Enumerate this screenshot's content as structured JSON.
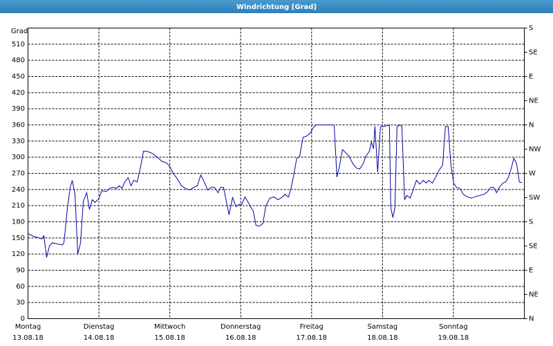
{
  "chart_data": {
    "type": "line",
    "title": "Windrichtung [Grad]",
    "ylabel": "Grad",
    "xlim": [
      0,
      7
    ],
    "ylim": [
      0,
      540
    ],
    "y2lim": [
      0,
      540
    ],
    "xticks": [
      {
        "value": 0,
        "label": "Montag"
      },
      {
        "value": 1,
        "label": "Dienstag"
      },
      {
        "value": 2,
        "label": "Mittwoch"
      },
      {
        "value": 3,
        "label": "Donnerstag"
      },
      {
        "value": 4,
        "label": "Freitag"
      },
      {
        "value": 5,
        "label": "Samstag"
      },
      {
        "value": 6,
        "label": "Sonntag"
      }
    ],
    "xtick_dates": [
      "13.08.18",
      "14.08.18",
      "15.08.18",
      "16.08.18",
      "17.08.18",
      "18.08.18",
      "19.08.18"
    ],
    "yticks": [
      0,
      30,
      60,
      90,
      120,
      150,
      180,
      210,
      240,
      270,
      300,
      330,
      360,
      390,
      420,
      450,
      480,
      510
    ],
    "y2ticks": [
      {
        "value": 0,
        "label": "N"
      },
      {
        "value": 45,
        "label": "NE"
      },
      {
        "value": 90,
        "label": "E"
      },
      {
        "value": 135,
        "label": "SE"
      },
      {
        "value": 180,
        "label": "S"
      },
      {
        "value": 225,
        "label": "SW"
      },
      {
        "value": 270,
        "label": "W"
      },
      {
        "value": 315,
        "label": "NW"
      },
      {
        "value": 360,
        "label": "N"
      },
      {
        "value": 405,
        "label": "NE"
      },
      {
        "value": 450,
        "label": "E"
      },
      {
        "value": 495,
        "label": "SE"
      },
      {
        "value": 540,
        "label": "S"
      }
    ],
    "grid": true,
    "color": "#0000a0",
    "x": [
      0,
      0.078,
      0.156,
      0.195,
      0.224,
      0.263,
      0.302,
      0.341,
      0.409,
      0.487,
      0.507,
      0.556,
      0.595,
      0.624,
      0.663,
      0.702,
      0.741,
      0.78,
      0.828,
      0.867,
      0.906,
      0.945,
      0.994,
      1.043,
      1.101,
      1.15,
      1.199,
      1.248,
      1.287,
      1.326,
      1.365,
      1.413,
      1.452,
      1.491,
      1.54,
      1.589,
      1.628,
      1.676,
      1.754,
      1.832,
      1.891,
      1.949,
      1.998,
      2.047,
      2.105,
      2.164,
      2.222,
      2.281,
      2.339,
      2.388,
      2.437,
      2.485,
      2.534,
      2.583,
      2.632,
      2.68,
      2.719,
      2.758,
      2.797,
      2.836,
      2.885,
      2.934,
      2.973,
      3.012,
      3.06,
      3.099,
      3.138,
      3.177,
      3.216,
      3.265,
      3.314,
      3.353,
      3.411,
      3.47,
      3.528,
      3.587,
      3.626,
      3.674,
      3.713,
      3.752,
      3.791,
      3.83,
      3.879,
      3.928,
      3.977,
      4.025,
      4.064,
      4.191,
      4.318,
      4.357,
      4.396,
      4.435,
      4.483,
      4.532,
      4.581,
      4.63,
      4.678,
      4.727,
      4.766,
      4.815,
      4.844,
      4.873,
      4.893,
      4.932,
      4.971,
      5.019,
      5.097,
      5.117,
      5.146,
      5.175,
      5.205,
      5.244,
      5.273,
      5.312,
      5.341,
      5.39,
      5.429,
      5.478,
      5.526,
      5.575,
      5.614,
      5.653,
      5.702,
      5.75,
      5.799,
      5.848,
      5.887,
      5.926,
      5.965,
      6.004,
      6.043,
      6.092,
      6.14,
      6.199,
      6.257,
      6.316,
      6.374,
      6.433,
      6.481,
      6.53,
      6.569,
      6.608,
      6.647,
      6.696,
      6.735,
      6.774,
      6.813,
      6.852,
      6.891,
      6.93,
      6.969
    ],
    "values": [
      158,
      153,
      150,
      148,
      154,
      114,
      135,
      141,
      139,
      137,
      141,
      205,
      244,
      257,
      231,
      120,
      141,
      218,
      234,
      203,
      221,
      216,
      222,
      238,
      236,
      242,
      244,
      242,
      247,
      242,
      254,
      262,
      247,
      257,
      254,
      283,
      311,
      311,
      307,
      299,
      292,
      290,
      283,
      270,
      260,
      247,
      242,
      239,
      244,
      247,
      267,
      254,
      239,
      244,
      244,
      234,
      244,
      244,
      218,
      193,
      225,
      208,
      212,
      212,
      226,
      218,
      208,
      200,
      173,
      172,
      177,
      209,
      224,
      226,
      221,
      226,
      231,
      226,
      244,
      270,
      298,
      301,
      337,
      339,
      344,
      355,
      360,
      360,
      360,
      263,
      285,
      314,
      308,
      301,
      288,
      280,
      278,
      288,
      302,
      311,
      328,
      316,
      357,
      272,
      357,
      357,
      360,
      206,
      188,
      206,
      357,
      360,
      357,
      221,
      229,
      224,
      238,
      257,
      250,
      257,
      252,
      257,
      252,
      263,
      276,
      285,
      357,
      357,
      285,
      252,
      244,
      242,
      231,
      226,
      224,
      227,
      229,
      231,
      236,
      244,
      244,
      234,
      244,
      252,
      254,
      262,
      278,
      298,
      288,
      254,
      253
    ]
  }
}
